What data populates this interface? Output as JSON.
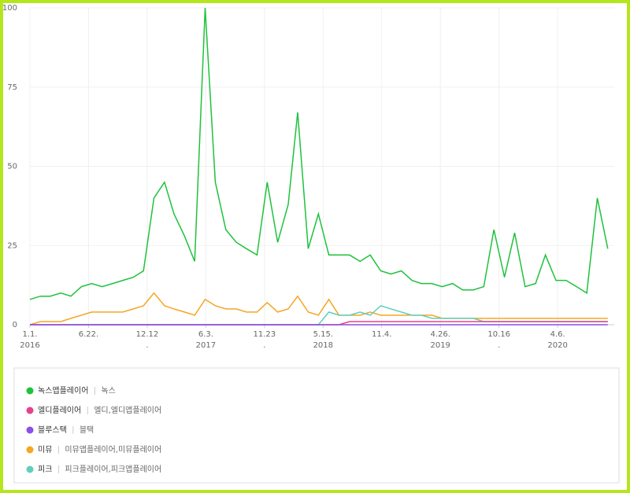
{
  "chart_data": {
    "type": "line",
    "x": [
      "2016-01-01",
      "2016-02-01",
      "2016-03-01",
      "2016-04-01",
      "2016-05-01",
      "2016-06-01",
      "2016-07-01",
      "2016-08-01",
      "2016-09-01",
      "2016-10-01",
      "2016-11-01",
      "2016-12-01",
      "2017-01-01",
      "2017-02-01",
      "2017-03-01",
      "2017-04-01",
      "2017-05-01",
      "2017-06-01",
      "2017-07-01",
      "2017-08-01",
      "2017-09-01",
      "2017-10-01",
      "2017-11-01",
      "2017-12-01",
      "2018-01-01",
      "2018-02-01",
      "2018-03-01",
      "2018-04-01",
      "2018-05-01",
      "2018-06-01",
      "2018-07-01",
      "2018-08-01",
      "2018-09-01",
      "2018-10-01",
      "2018-11-01",
      "2018-12-01",
      "2019-01-01",
      "2019-02-01",
      "2019-03-01",
      "2019-04-01",
      "2019-05-01",
      "2019-06-01",
      "2019-07-01",
      "2019-08-01",
      "2019-09-01",
      "2019-10-01",
      "2019-11-01",
      "2019-12-01",
      "2020-01-01",
      "2020-02-01",
      "2020-03-01",
      "2020-04-01",
      "2020-05-01",
      "2020-06-01",
      "2020-07-01",
      "2020-08-01",
      "2020-09-01"
    ],
    "series": [
      {
        "name": "녹스앱플레이어",
        "keywords": "녹스",
        "color": "#1ec23c",
        "values": [
          8,
          9,
          9,
          10,
          9,
          12,
          13,
          12,
          13,
          14,
          15,
          17,
          40,
          45,
          35,
          28,
          20,
          100,
          45,
          30,
          26,
          24,
          22,
          45,
          26,
          38,
          67,
          24,
          35,
          22,
          22,
          22,
          20,
          22,
          17,
          16,
          17,
          14,
          13,
          13,
          12,
          13,
          11,
          11,
          12,
          30,
          15,
          29,
          12,
          13,
          22,
          14,
          14,
          12,
          10,
          40,
          24
        ]
      },
      {
        "name": "엘디플레이어",
        "keywords": "엘디,엘디앱플레이어",
        "color": "#e8418c",
        "values": [
          0,
          0,
          0,
          0,
          0,
          0,
          0,
          0,
          0,
          0,
          0,
          0,
          0,
          0,
          0,
          0,
          0,
          0,
          0,
          0,
          0,
          0,
          0,
          0,
          0,
          0,
          0,
          0,
          0,
          0,
          0,
          1,
          1,
          1,
          1,
          1,
          1,
          1,
          1,
          1,
          1,
          1,
          1,
          1,
          1,
          1,
          1,
          1,
          1,
          1,
          1,
          1,
          1,
          1,
          1,
          1,
          1
        ]
      },
      {
        "name": "블루스택",
        "keywords": "블택",
        "color": "#8a4fe8",
        "values": [
          0,
          0,
          0,
          0,
          0,
          0,
          0,
          0,
          0,
          0,
          0,
          0,
          0,
          0,
          0,
          0,
          0,
          0,
          0,
          0,
          0,
          0,
          0,
          0,
          0,
          0,
          0,
          0,
          0,
          0,
          0,
          0,
          0,
          0,
          0,
          0,
          0,
          0,
          0,
          0,
          0,
          0,
          0,
          0,
          0,
          0,
          0,
          0,
          0,
          0,
          0,
          0,
          0,
          0,
          0,
          0,
          0
        ]
      },
      {
        "name": "미뮤",
        "keywords": "미뮤앱플레이어,미뮤플레이어",
        "color": "#f5a623",
        "values": [
          0,
          1,
          1,
          1,
          2,
          3,
          4,
          4,
          4,
          4,
          5,
          6,
          10,
          6,
          5,
          4,
          3,
          8,
          6,
          5,
          5,
          4,
          4,
          7,
          4,
          5,
          9,
          4,
          3,
          8,
          3,
          3,
          3,
          4,
          3,
          3,
          3,
          3,
          3,
          3,
          2,
          2,
          2,
          2,
          2,
          2,
          2,
          2,
          2,
          2,
          2,
          2,
          2,
          2,
          2,
          2,
          2
        ]
      },
      {
        "name": "피크",
        "keywords": "피크플레이어,피크앱플레이어",
        "color": "#5fcfbf",
        "values": [
          0,
          0,
          0,
          0,
          0,
          0,
          0,
          0,
          0,
          0,
          0,
          0,
          0,
          0,
          0,
          0,
          0,
          0,
          0,
          0,
          0,
          0,
          0,
          0,
          0,
          0,
          0,
          0,
          0,
          4,
          3,
          3,
          4,
          3,
          6,
          5,
          4,
          3,
          3,
          2,
          2,
          2,
          2,
          2,
          1,
          1,
          1,
          1,
          1,
          1,
          1,
          1,
          1,
          1,
          1,
          1,
          1
        ]
      }
    ],
    "xlim": [
      "2016-01-01",
      "2020-09-20"
    ],
    "xticks": [
      {
        "value": "2016-01-01",
        "label": "1.1."
      },
      {
        "value": "2016-06-22",
        "label": "6.22."
      },
      {
        "value": "2016-12-12",
        "label": "12.12"
      },
      {
        "value": "2017-06-03",
        "label": "6.3."
      },
      {
        "value": "2017-11-23",
        "label": "11.23"
      },
      {
        "value": "2018-05-15",
        "label": "5.15."
      },
      {
        "value": "2018-11-04",
        "label": "11.4."
      },
      {
        "value": "2019-04-26",
        "label": "4.26."
      },
      {
        "value": "2019-10-16",
        "label": "10.16"
      },
      {
        "value": "2020-04-06",
        "label": "4.6."
      }
    ],
    "xtick_sublabels": [
      "2016",
      null,
      ".",
      "2017",
      ".",
      "2018",
      null,
      "2019",
      ".",
      "2020"
    ],
    "ylim": [
      0,
      100
    ],
    "yticks": [
      0,
      25,
      50,
      75,
      100
    ],
    "grid": true
  }
}
